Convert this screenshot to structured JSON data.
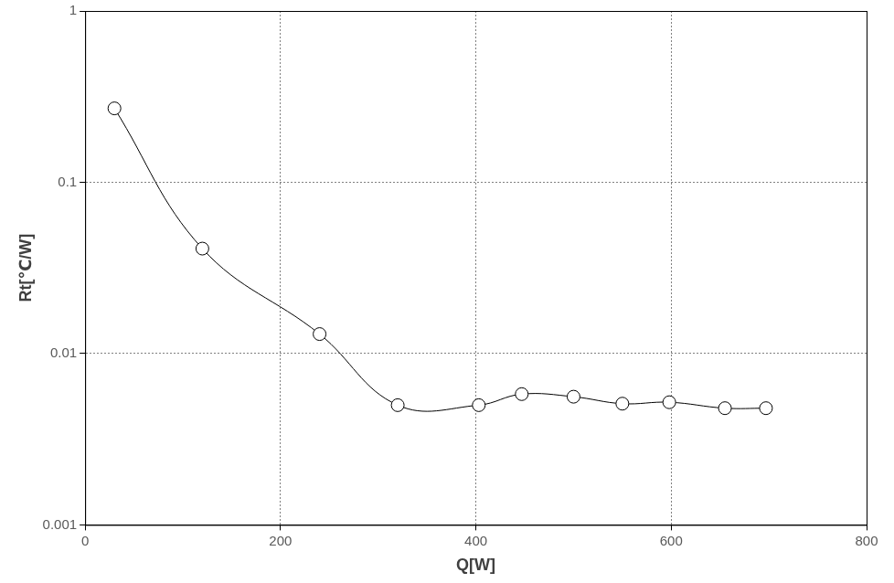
{
  "chart_data": {
    "type": "line",
    "x_label": "Q[W]",
    "y_label": "Rt[℃/W]",
    "x": [
      30,
      120,
      240,
      320,
      403,
      447,
      500,
      550,
      598,
      655,
      697
    ],
    "values": [
      0.27,
      0.041,
      0.013,
      0.005,
      0.005,
      0.0058,
      0.0056,
      0.0051,
      0.0052,
      0.0048,
      0.0048
    ],
    "color": "#000000",
    "marker": "circle",
    "line_style": "solid",
    "xlim": [
      0,
      800
    ],
    "xticks": [
      0,
      200,
      400,
      600,
      800
    ],
    "ylim": [
      0.001,
      1
    ],
    "yticks": [
      0.001,
      0.01,
      0.1,
      1
    ],
    "log": "y",
    "grid": true
  }
}
